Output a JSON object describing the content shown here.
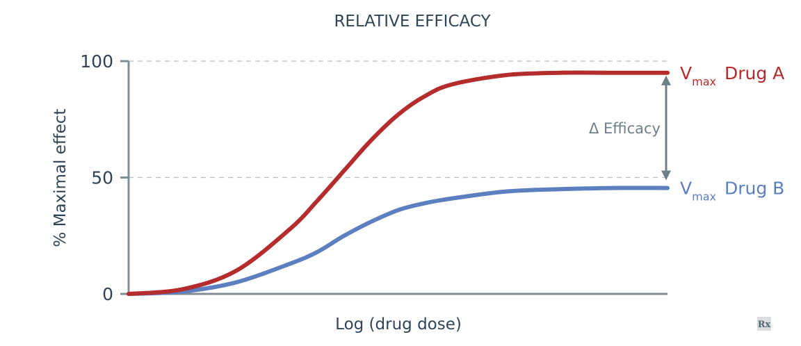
{
  "chart_data": {
    "type": "line",
    "title": "RELATIVE EFFICACY",
    "xlabel": "Log (drug dose)",
    "ylabel": "% Maximal effect",
    "ylim": [
      0,
      100
    ],
    "yticks": [
      0,
      50,
      100
    ],
    "grid": "dashed lines at 50 and 100",
    "x_ticks_shown": false,
    "series": [
      {
        "name": "Drug A",
        "label_prefix": "V",
        "label_subscript": "max",
        "color": "#b42c2c",
        "x": [
          0,
          0.1,
          0.2,
          0.3,
          0.35,
          0.4,
          0.45,
          0.5,
          0.55,
          0.6,
          0.7,
          0.8,
          0.9,
          1.0
        ],
        "y": [
          0,
          2,
          10,
          28,
          40,
          53,
          66,
          77,
          85,
          90,
          94,
          95,
          95,
          95
        ]
      },
      {
        "name": "Drug B",
        "label_prefix": "V",
        "label_subscript": "max",
        "color": "#5b7fbf",
        "x": [
          0,
          0.1,
          0.2,
          0.3,
          0.35,
          0.4,
          0.45,
          0.5,
          0.55,
          0.6,
          0.7,
          0.8,
          0.9,
          1.0
        ],
        "y": [
          0,
          1,
          5,
          13,
          18,
          25,
          31,
          36,
          39,
          41,
          44,
          45,
          45.5,
          45.5
        ]
      }
    ],
    "annotation": {
      "text": "Δ Efficacy",
      "from_series": "Drug A",
      "to_series": "Drug B",
      "color": "#6f7f88"
    },
    "logo": "Rx"
  }
}
